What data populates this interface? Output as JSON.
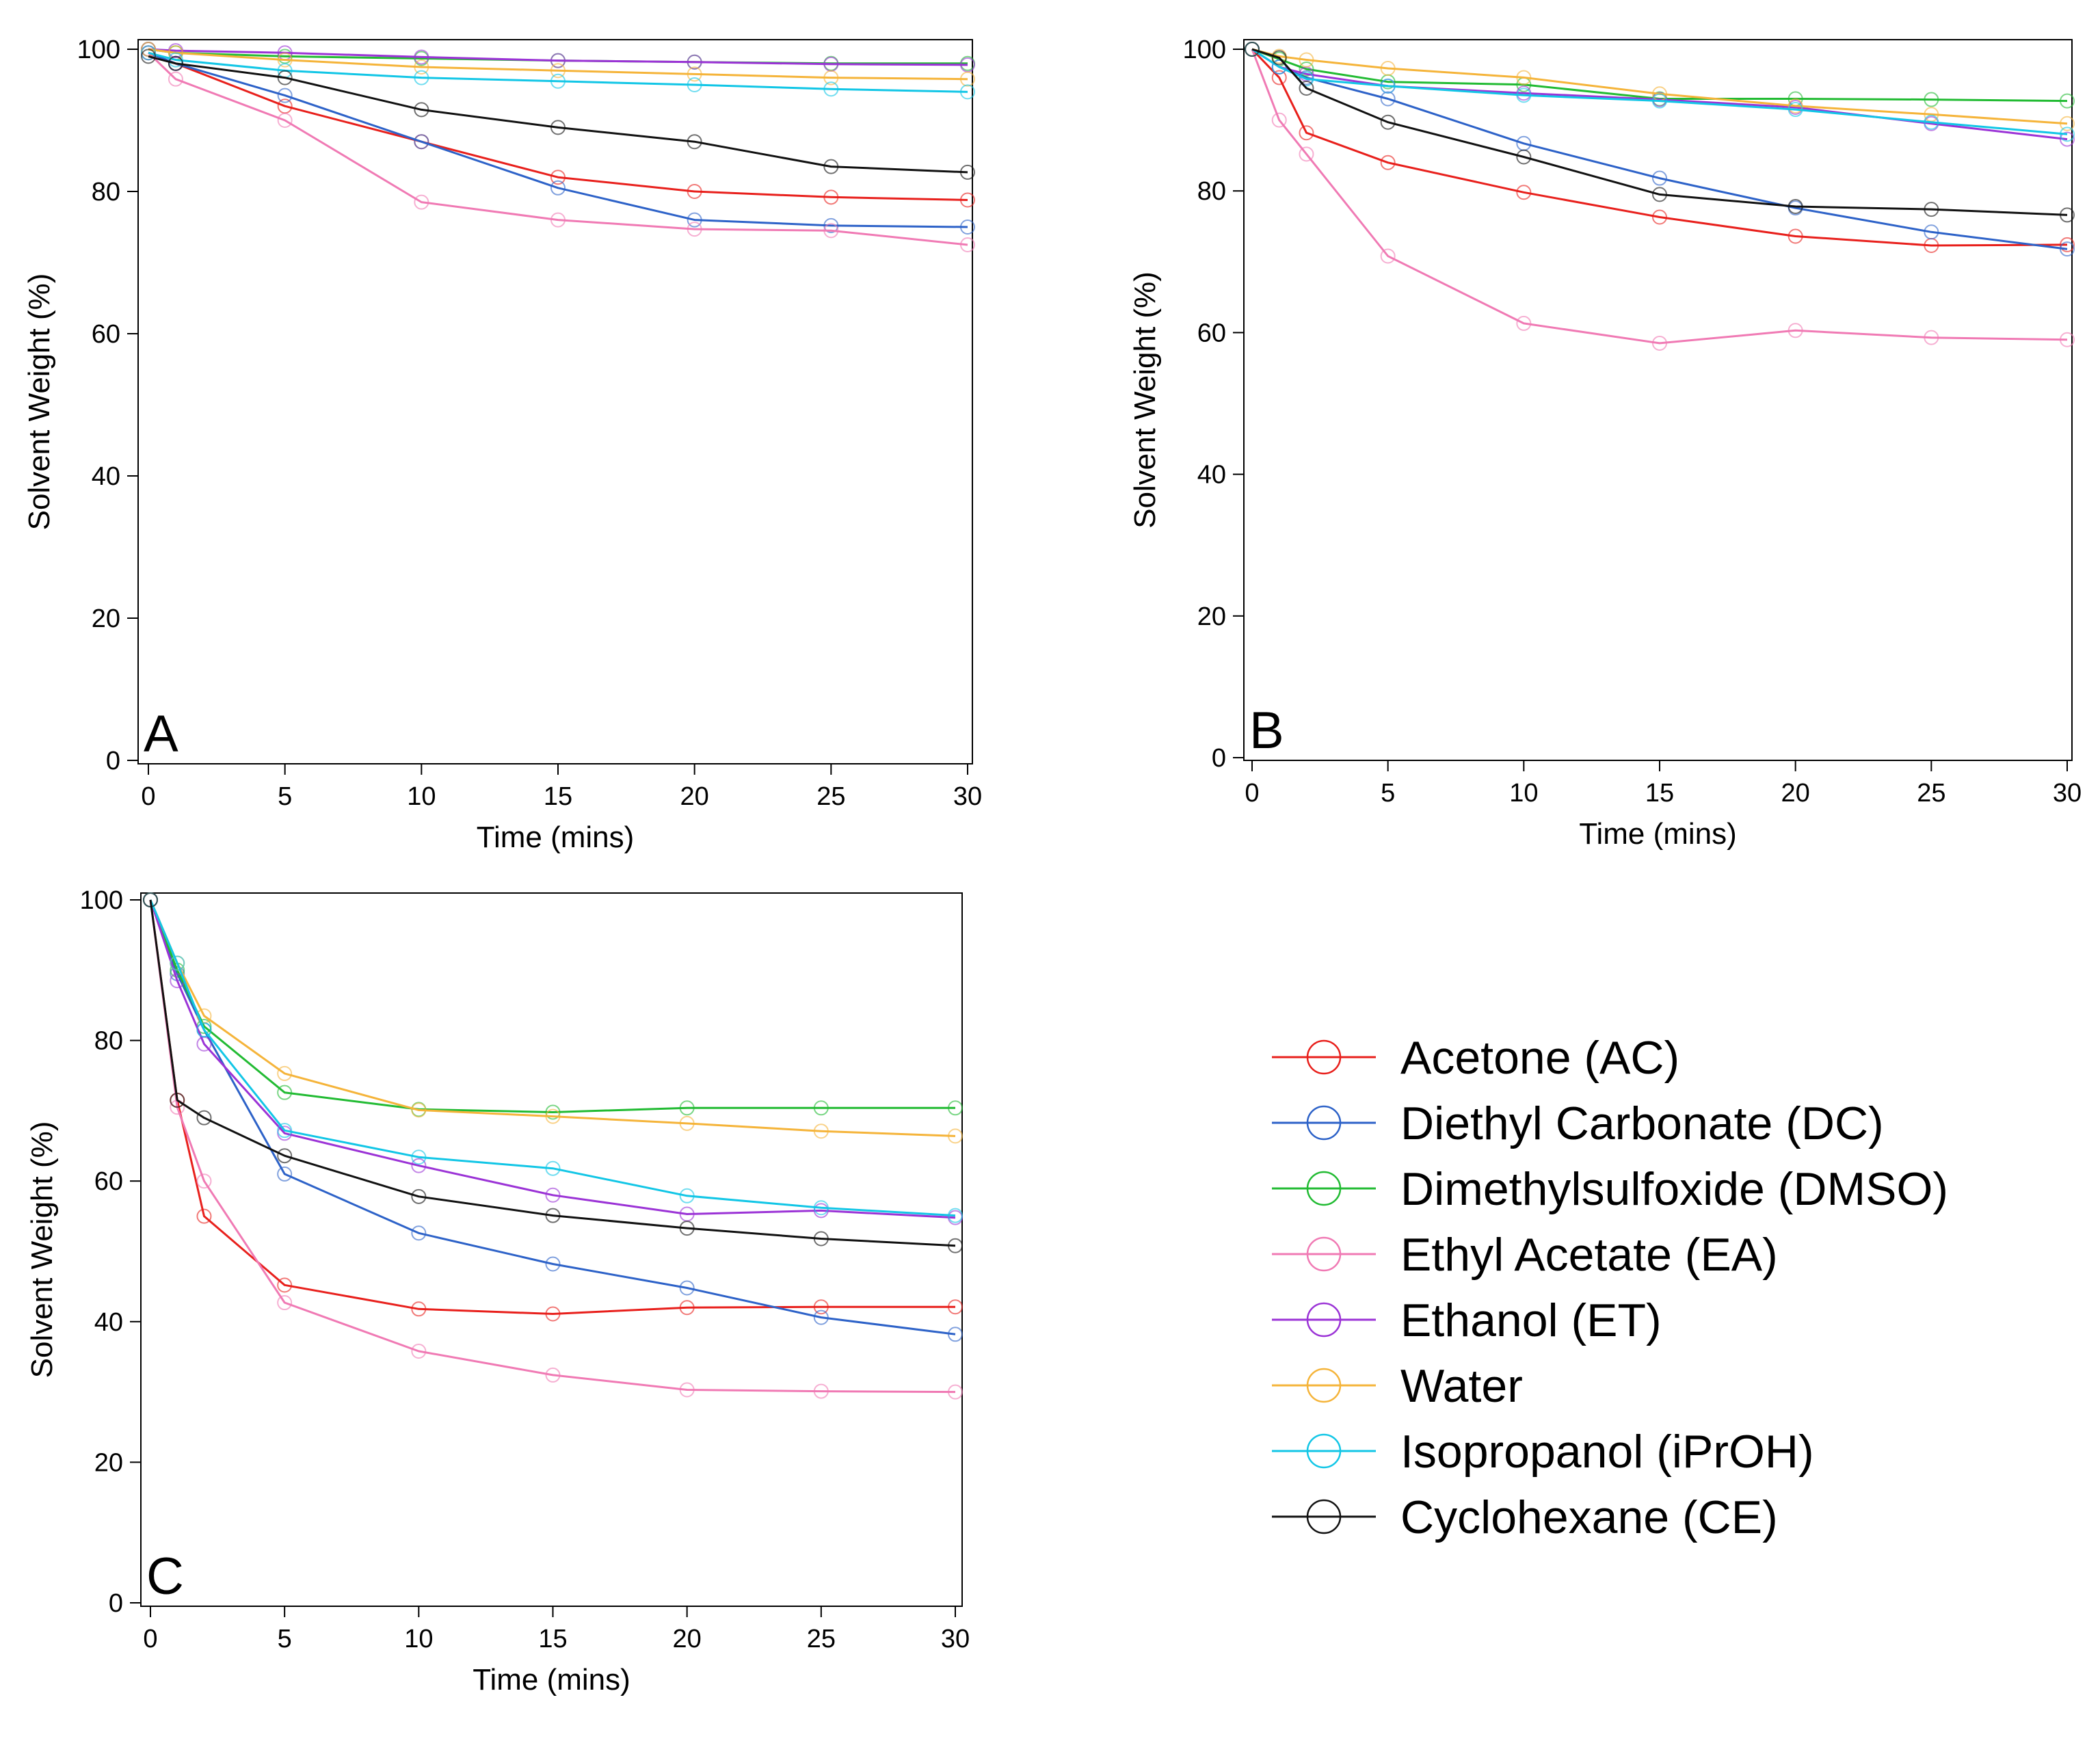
{
  "chart_data": [
    {
      "type": "line",
      "panel_label": "A",
      "xlabel": "Time (mins)",
      "ylabel": "Solvent Weight (%)",
      "xlim": [
        0,
        30
      ],
      "ylim": [
        0,
        100
      ],
      "xticks": [
        0,
        5,
        10,
        15,
        20,
        25,
        30
      ],
      "yticks": [
        0,
        20,
        40,
        60,
        80,
        100
      ],
      "x": [
        0,
        1,
        5,
        10,
        15,
        20,
        25,
        30
      ],
      "series": [
        {
          "name": "Acetone (AC)",
          "color": "#e8201c",
          "values": [
            99.5,
            98,
            92,
            87,
            82,
            80,
            79.2,
            78.8
          ]
        },
        {
          "name": "Diethyl Carbonate (DC)",
          "color": "#2d62c8",
          "values": [
            99.5,
            98,
            93.5,
            87,
            80.5,
            76,
            75.2,
            75
          ]
        },
        {
          "name": "Dimethylsulfoxide (DMSO)",
          "color": "#22bb33",
          "values": [
            100,
            99.5,
            99,
            98.7,
            98.4,
            98.2,
            98,
            98
          ]
        },
        {
          "name": "Ethyl Acetate (EA)",
          "color": "#f07ab4",
          "values": [
            99.5,
            95.8,
            90,
            78.5,
            76,
            74.7,
            74.5,
            72.5
          ]
        },
        {
          "name": "Ethanol (ET)",
          "color": "#9b33d6",
          "values": [
            100,
            99.8,
            99.5,
            98.9,
            98.4,
            98.2,
            97.9,
            97.8
          ]
        },
        {
          "name": "Water",
          "color": "#f5b43a",
          "values": [
            100,
            99.5,
            98.5,
            97.5,
            97,
            96.5,
            96,
            95.8
          ]
        },
        {
          "name": "Isopropanol (iPrOH)",
          "color": "#12c6e6",
          "values": [
            99.5,
            98.5,
            97,
            96,
            95.5,
            95,
            94.4,
            94
          ]
        },
        {
          "name": "Cyclohexane (CE)",
          "color": "#111111",
          "values": [
            99,
            98,
            96,
            91.5,
            89,
            87,
            83.5,
            82.7
          ]
        }
      ]
    },
    {
      "type": "line",
      "panel_label": "B",
      "xlabel": "Time (mins)",
      "ylabel": "Solvent Weight (%)",
      "xlim": [
        0,
        30
      ],
      "ylim": [
        0,
        100
      ],
      "xticks": [
        0,
        5,
        10,
        15,
        20,
        25,
        30
      ],
      "yticks": [
        0,
        20,
        40,
        60,
        80,
        100
      ],
      "x": [
        0,
        1,
        2,
        5,
        10,
        15,
        20,
        25,
        30
      ],
      "series": [
        {
          "name": "Acetone (AC)",
          "color": "#e8201c",
          "values": [
            100,
            96,
            88.2,
            84,
            79.8,
            76.3,
            73.6,
            72.3,
            72.4
          ]
        },
        {
          "name": "Diethyl Carbonate (DC)",
          "color": "#2d62c8",
          "values": [
            100,
            97.5,
            96,
            93,
            86.7,
            81.8,
            77.6,
            74.2,
            71.8
          ]
        },
        {
          "name": "Dimethylsulfoxide (DMSO)",
          "color": "#22bb33",
          "values": [
            100,
            98.6,
            97.2,
            95.4,
            95,
            93,
            93,
            92.9,
            92.7
          ]
        },
        {
          "name": "Ethyl Acetate (EA)",
          "color": "#f07ab4",
          "values": [
            100,
            90,
            85.2,
            70.8,
            61.3,
            58.5,
            60.3,
            59.3,
            59
          ]
        },
        {
          "name": "Ethanol (ET)",
          "color": "#9b33d6",
          "values": [
            100,
            97.5,
            96.5,
            94.8,
            93.8,
            92.9,
            91.8,
            89.5,
            87.3
          ]
        },
        {
          "name": "Water",
          "color": "#f5b43a",
          "values": [
            100,
            99,
            98.5,
            97.3,
            96,
            93.7,
            92,
            90.8,
            89.5
          ]
        },
        {
          "name": "Isopropanol (iPrOH)",
          "color": "#12c6e6",
          "values": [
            100,
            97.5,
            95.8,
            94.8,
            93.5,
            92.7,
            91.5,
            89.7,
            88
          ]
        },
        {
          "name": "Cyclohexane (CE)",
          "color": "#111111",
          "values": [
            100,
            98.8,
            94.5,
            89.7,
            84.8,
            79.5,
            77.8,
            77.4,
            76.6
          ]
        }
      ]
    },
    {
      "type": "line",
      "panel_label": "C",
      "xlabel": "Time (mins)",
      "ylabel": "Solvent Weight (%)",
      "xlim": [
        0,
        30
      ],
      "ylim": [
        0,
        100
      ],
      "xticks": [
        0,
        5,
        10,
        15,
        20,
        25,
        30
      ],
      "yticks": [
        0,
        20,
        40,
        60,
        80,
        100
      ],
      "x": [
        0,
        1,
        2,
        5,
        10,
        15,
        20,
        25,
        30
      ],
      "series": [
        {
          "name": "Acetone (AC)",
          "color": "#e8201c",
          "values": [
            100,
            71.5,
            55,
            45.2,
            41.8,
            41.1,
            42,
            42.1,
            42.1
          ]
        },
        {
          "name": "Diethyl Carbonate (DC)",
          "color": "#2d62c8",
          "values": [
            100,
            89.5,
            81.5,
            61,
            52.6,
            48.2,
            44.8,
            40.6,
            38.2
          ]
        },
        {
          "name": "Dimethylsulfoxide (DMSO)",
          "color": "#22bb33",
          "values": [
            100,
            90,
            82,
            72.6,
            70.2,
            69.8,
            70.4,
            70.4,
            70.4
          ]
        },
        {
          "name": "Ethyl Acetate (EA)",
          "color": "#f07ab4",
          "values": [
            100,
            70.5,
            60,
            42.7,
            35.8,
            32.4,
            30.3,
            30.1,
            30
          ]
        },
        {
          "name": "Ethanol (ET)",
          "color": "#9b33d6",
          "values": [
            100,
            88.5,
            79.5,
            66.8,
            62.2,
            58,
            55.3,
            55.8,
            54.8
          ]
        },
        {
          "name": "Water",
          "color": "#f5b43a",
          "values": [
            100,
            91,
            83.5,
            75.3,
            70.1,
            69.2,
            68.2,
            67.1,
            66.4
          ]
        },
        {
          "name": "Isopropanol (iPrOH)",
          "color": "#12c6e6",
          "values": [
            100,
            91,
            81.5,
            67.2,
            63.4,
            61.8,
            57.9,
            56.2,
            55.1
          ]
        },
        {
          "name": "Cyclohexane (CE)",
          "color": "#111111",
          "values": [
            100,
            71.5,
            69,
            63.6,
            57.8,
            55.1,
            53.3,
            51.8,
            50.8
          ]
        }
      ]
    }
  ],
  "legend": {
    "items": [
      {
        "label": "Acetone (AC)",
        "color": "#e8201c"
      },
      {
        "label": "Diethyl Carbonate (DC)",
        "color": "#2d62c8"
      },
      {
        "label": "Dimethylsulfoxide (DMSO)",
        "color": "#22bb33"
      },
      {
        "label": "Ethyl Acetate (EA)",
        "color": "#f07ab4"
      },
      {
        "label": "Ethanol (ET)",
        "color": "#9b33d6"
      },
      {
        "label": "Water",
        "color": "#f5b43a"
      },
      {
        "label": "Isopropanol (iPrOH)",
        "color": "#12c6e6"
      },
      {
        "label": "Cyclohexane (CE)",
        "color": "#111111"
      }
    ]
  }
}
